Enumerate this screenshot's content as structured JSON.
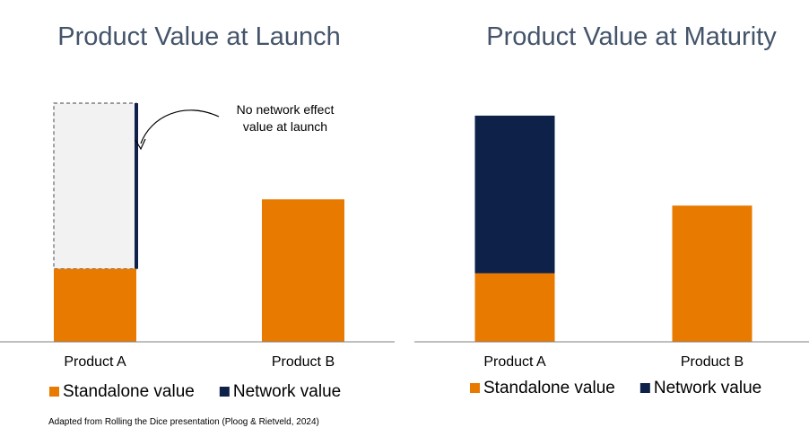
{
  "chart_data": [
    {
      "type": "bar",
      "stacked": true,
      "title": "Product Value at Launch",
      "xlabel": "",
      "ylabel": "",
      "categories": [
        "Product A",
        "Product B"
      ],
      "series": [
        {
          "name": "Standalone value",
          "color": "#e87a00",
          "values": [
            82,
            160
          ]
        },
        {
          "name": "Network value",
          "color": "#0d2149",
          "values": [
            0,
            0
          ]
        }
      ],
      "ylim": [
        0,
        270
      ],
      "grid": false,
      "legend": "bottom",
      "annotation": {
        "lines": [
          "No network effect",
          "value at launch"
        ],
        "target": "Product A"
      },
      "ghost_bar": {
        "category": "Product A",
        "value": 268
      }
    },
    {
      "type": "bar",
      "stacked": true,
      "title": "Product Value at Maturity",
      "xlabel": "",
      "ylabel": "",
      "categories": [
        "Product A",
        "Product B"
      ],
      "series": [
        {
          "name": "Standalone value",
          "color": "#e87a00",
          "values": [
            77,
            153
          ]
        },
        {
          "name": "Network value",
          "color": "#0d2149",
          "values": [
            177,
            0
          ]
        }
      ],
      "ylim": [
        0,
        270
      ],
      "grid": false,
      "legend": "bottom"
    }
  ],
  "source": "Adapted from Rolling the Dice presentation (Ploog & Rietveld, 2024)"
}
